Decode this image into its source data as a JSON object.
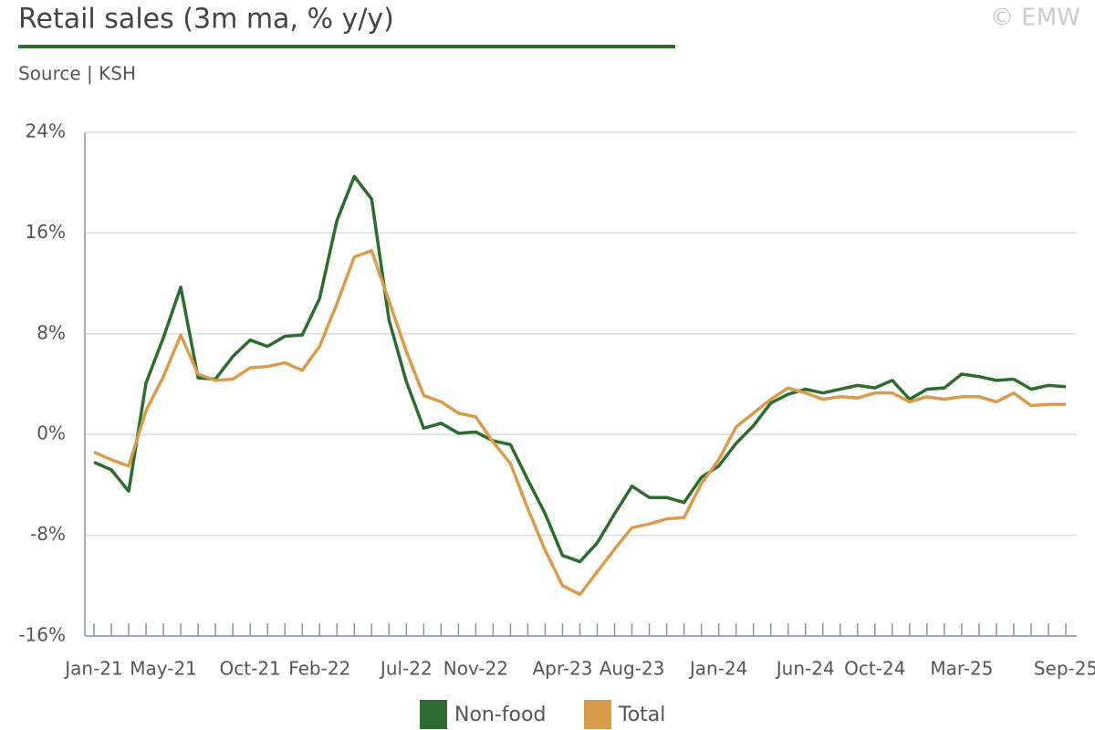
{
  "chart_data": {
    "type": "line",
    "title": "Retail sales (3m ma, % y/y)",
    "subtitle": "Source | KSH",
    "watermark": "© EMW",
    "categories": [
      "Jan-21",
      null,
      null,
      null,
      "May-21",
      null,
      null,
      null,
      null,
      "Oct-21",
      null,
      null,
      null,
      "Feb-22",
      null,
      null,
      null,
      null,
      "Jul-22",
      null,
      null,
      null,
      "Nov-22",
      null,
      null,
      null,
      null,
      "Apr-23",
      null,
      null,
      null,
      "Aug-23",
      null,
      null,
      null,
      null,
      "Jan-24",
      null,
      null,
      null,
      null,
      "Jun-24",
      null,
      null,
      null,
      "Oct-24",
      null,
      null,
      null,
      null,
      "Mar-25",
      null,
      null,
      null,
      null,
      null,
      "Sep-25"
    ],
    "series": [
      {
        "name": "Non-food",
        "color": "#2e6b2e",
        "values": [
          -2.2,
          -2.8,
          -4.5,
          4.1,
          7.7,
          11.7,
          4.5,
          4.4,
          6.2,
          7.5,
          7.0,
          7.8,
          7.9,
          10.8,
          17.0,
          20.5,
          18.7,
          9.1,
          4.2,
          0.5,
          0.9,
          0.1,
          0.2,
          -0.5,
          -0.8,
          -3.6,
          -6.3,
          -9.6,
          -10.1,
          -8.6,
          -6.3,
          -4.1,
          -5.0,
          -5.0,
          -5.4,
          -3.4,
          -2.5,
          -0.7,
          0.7,
          2.5,
          3.2,
          3.6,
          3.3,
          3.6,
          3.9,
          3.7,
          4.3,
          2.8,
          3.6,
          3.7,
          4.8,
          4.6,
          4.3,
          4.4,
          3.6,
          3.9,
          3.8
        ]
      },
      {
        "name": "Total",
        "color": "#d99b4e",
        "values": [
          -1.4,
          -2.0,
          -2.5,
          1.9,
          4.6,
          7.9,
          4.8,
          4.3,
          4.4,
          5.3,
          5.4,
          5.7,
          5.1,
          7.0,
          10.4,
          14.1,
          14.6,
          10.6,
          6.6,
          3.1,
          2.6,
          1.7,
          1.4,
          -0.6,
          -2.3,
          -5.9,
          -9.2,
          -12.0,
          -12.7,
          -10.9,
          -9.1,
          -7.4,
          -7.1,
          -6.7,
          -6.6,
          -3.9,
          -2.0,
          0.6,
          1.7,
          2.8,
          3.7,
          3.3,
          2.8,
          3.0,
          2.9,
          3.3,
          3.3,
          2.6,
          3.0,
          2.8,
          3.0,
          3.0,
          2.6,
          3.3,
          2.3,
          2.4,
          2.4
        ]
      }
    ],
    "ylim": [
      -16,
      24
    ],
    "yticks": [
      {
        "value": 24,
        "label": "24%"
      },
      {
        "value": 16,
        "label": "16%"
      },
      {
        "value": 8,
        "label": "8%"
      },
      {
        "value": 0,
        "label": "0%"
      },
      {
        "value": -8,
        "label": "-8%"
      },
      {
        "value": -16,
        "label": "-16%"
      }
    ],
    "grid": true,
    "legend": "bottom"
  }
}
